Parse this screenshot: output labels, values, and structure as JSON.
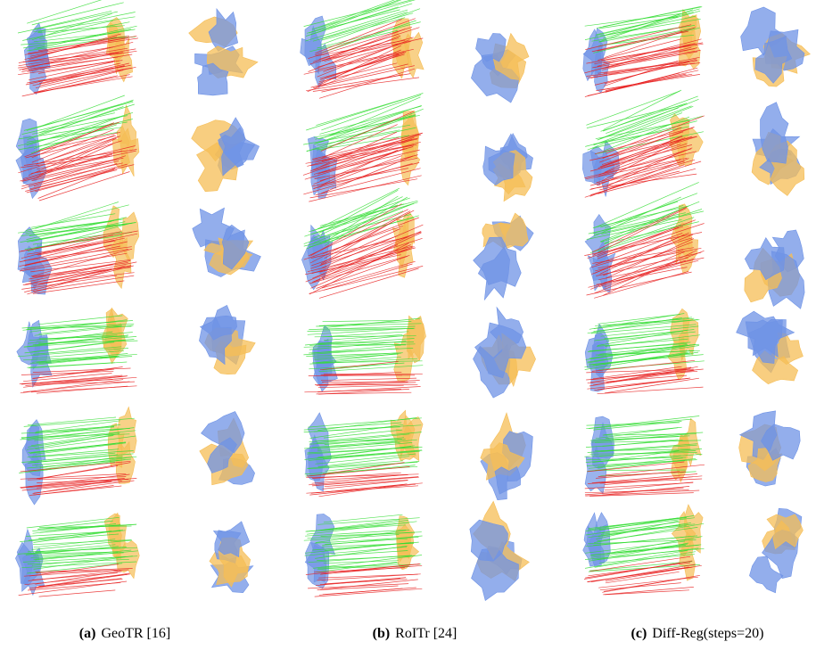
{
  "captions": [
    {
      "label": "(a)",
      "text": "GeoTR [16]"
    },
    {
      "label": "(b)",
      "text": "RoITr [24]"
    },
    {
      "label": "(c)",
      "text": "Diff-Reg(steps=20)"
    }
  ]
}
